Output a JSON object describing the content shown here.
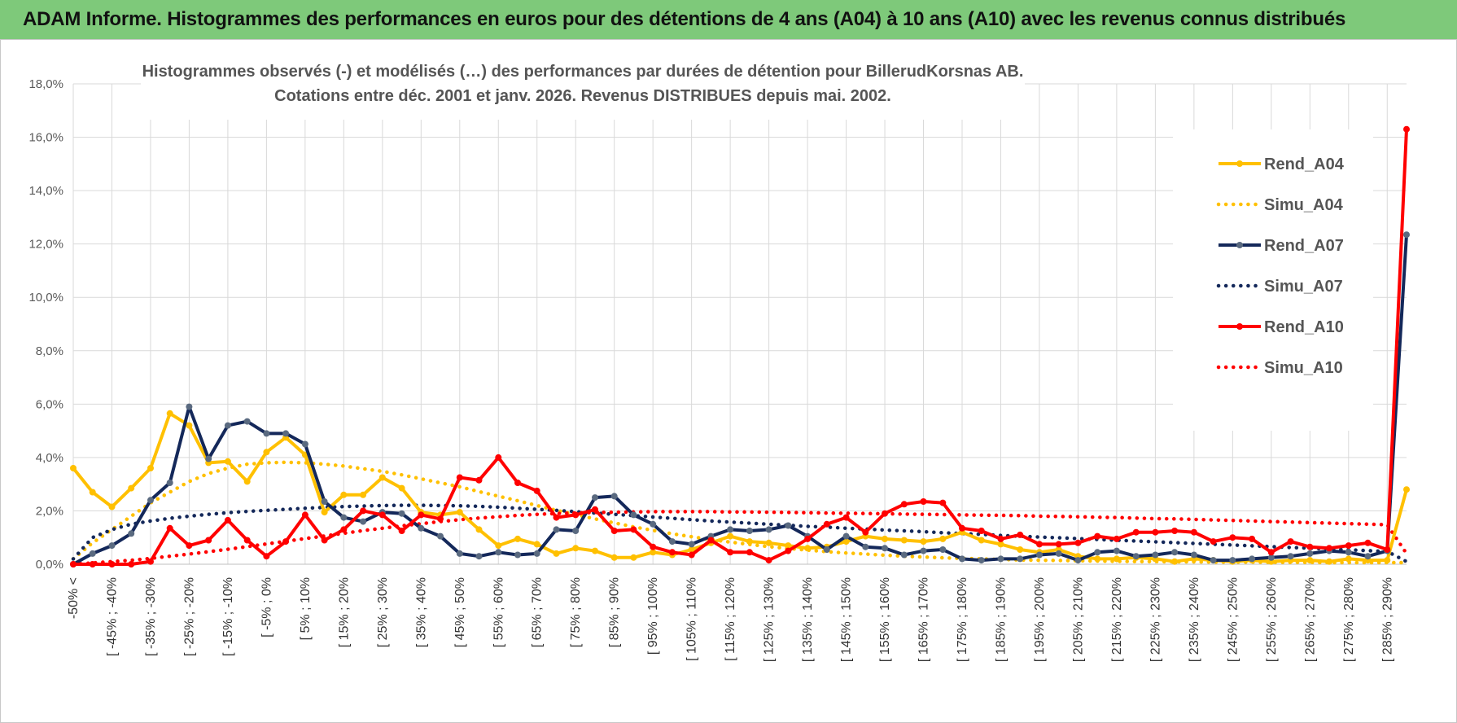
{
  "banner": {
    "title": "ADAM Informe. Histogrammes des performances en euros pour des détentions de 4 ans (A04) à 10 ans (A10) avec les revenus connus distribués"
  },
  "colors": {
    "banner_bg": "#7ec97a",
    "A04": "#ffc000",
    "A07": "#14285a",
    "A10": "#ff0000",
    "grid": "#d9d9d9"
  },
  "chart_data": {
    "type": "line",
    "title_line1": "Histogrammes observés (-) et modélisés (…) des performances par durées de détention pour BillerudKorsnas AB.",
    "title_line2": "Cotations entre déc. 2001 et janv. 2026.  Revenus DISTRIBUES depuis mai. 2002.",
    "xlabel": "",
    "ylabel": "",
    "ylim": [
      0,
      18
    ],
    "yticks": [
      "0,0%",
      "2,0%",
      "4,0%",
      "6,0%",
      "8,0%",
      "10,0%",
      "12,0%",
      "14,0%",
      "16,0%",
      "18,0%"
    ],
    "xtick_labels": [
      "-50% <",
      "[ -45% ; -40%",
      "[ -35% ; -30%",
      "[ -25% ; -20%",
      "[ -15% ; -10%",
      "[ -5% ; 0%",
      "[ 5% ; 10%",
      "[ 15% ; 20%",
      "[ 25% ; 30%",
      "[ 35% ; 40%",
      "[ 45% ; 50%",
      "[ 55% ; 60%",
      "[ 65% ; 70%",
      "[ 75% ; 80%",
      "[ 85% ; 90%",
      "[ 95% ; 100%",
      "[ 105% ; 110%",
      "[ 115% ; 120%",
      "[ 125% ; 130%",
      "[ 135% ; 140%",
      "[ 145% ; 150%",
      "[ 155% ; 160%",
      "[ 165% ; 170%",
      "[ 175% ; 180%",
      "[ 185% ; 190%",
      "[ 195% ; 200%",
      "[ 205% ; 210%",
      "[ 215% ; 220%",
      "[ 225% ; 230%",
      "[ 235% ; 240%",
      "[ 245% ; 250%",
      "[ 255% ; 260%",
      "[ 265% ; 270%",
      "[ 275% ; 280%",
      "[ 285% ; 290%"
    ],
    "n_points": 70,
    "series": [
      {
        "name": "Rend_A04",
        "style": "solid",
        "color": "#ffc000",
        "values": [
          3.6,
          2.7,
          2.15,
          2.85,
          3.6,
          5.65,
          5.2,
          3.8,
          3.85,
          3.1,
          4.2,
          4.75,
          4.1,
          1.95,
          2.6,
          2.6,
          3.25,
          2.85,
          1.95,
          1.85,
          1.95,
          1.3,
          0.7,
          0.95,
          0.75,
          0.4,
          0.6,
          0.5,
          0.25,
          0.25,
          0.45,
          0.35,
          0.55,
          0.8,
          1.05,
          0.85,
          0.8,
          0.7,
          0.6,
          0.65,
          0.85,
          1.05,
          0.95,
          0.9,
          0.85,
          0.95,
          1.2,
          0.9,
          0.75,
          0.55,
          0.45,
          0.55,
          0.3,
          0.2,
          0.2,
          0.25,
          0.2,
          0.1,
          0.2,
          0.15,
          0.1,
          0.15,
          0.1,
          0.15,
          0.15,
          0.1,
          0.2,
          0.15,
          0.15,
          2.8
        ]
      },
      {
        "name": "Simu_A04",
        "style": "dotted",
        "color": "#ffc000",
        "values": [
          0.2,
          0.8,
          1.3,
          1.8,
          2.3,
          2.7,
          3.1,
          3.4,
          3.6,
          3.75,
          3.8,
          3.82,
          3.8,
          3.75,
          3.68,
          3.58,
          3.48,
          3.35,
          3.2,
          3.05,
          2.9,
          2.72,
          2.55,
          2.38,
          2.2,
          2.02,
          1.86,
          1.7,
          1.55,
          1.4,
          1.27,
          1.14,
          1.03,
          0.92,
          0.83,
          0.74,
          0.66,
          0.59,
          0.53,
          0.47,
          0.42,
          0.38,
          0.34,
          0.3,
          0.27,
          0.24,
          0.22,
          0.2,
          0.18,
          0.16,
          0.15,
          0.14,
          0.13,
          0.12,
          0.11,
          0.1,
          0.1,
          0.09,
          0.09,
          0.08,
          0.08,
          0.08,
          0.07,
          0.07,
          0.07,
          0.06,
          0.06,
          0.06,
          0.06,
          0.06
        ]
      },
      {
        "name": "Rend_A07",
        "style": "solid",
        "color": "#14285a",
        "values": [
          0.0,
          0.4,
          0.7,
          1.15,
          2.4,
          3.05,
          5.9,
          3.95,
          5.2,
          5.35,
          4.9,
          4.9,
          4.5,
          2.35,
          1.75,
          1.6,
          1.95,
          1.9,
          1.35,
          1.05,
          0.4,
          0.3,
          0.45,
          0.35,
          0.4,
          1.3,
          1.25,
          2.5,
          2.55,
          1.85,
          1.5,
          0.85,
          0.75,
          1.05,
          1.3,
          1.25,
          1.3,
          1.45,
          1.05,
          0.55,
          1.05,
          0.65,
          0.6,
          0.35,
          0.5,
          0.55,
          0.2,
          0.15,
          0.2,
          0.2,
          0.35,
          0.4,
          0.15,
          0.45,
          0.5,
          0.3,
          0.35,
          0.45,
          0.35,
          0.15,
          0.15,
          0.2,
          0.25,
          0.3,
          0.4,
          0.5,
          0.45,
          0.3,
          0.5,
          12.35
        ]
      },
      {
        "name": "Simu_A07",
        "style": "dotted",
        "color": "#14285a",
        "values": [
          0.2,
          1.0,
          1.3,
          1.5,
          1.62,
          1.72,
          1.8,
          1.87,
          1.93,
          1.98,
          2.02,
          2.06,
          2.1,
          2.13,
          2.16,
          2.18,
          2.2,
          2.21,
          2.21,
          2.2,
          2.19,
          2.17,
          2.14,
          2.1,
          2.06,
          2.02,
          1.97,
          1.92,
          1.87,
          1.82,
          1.77,
          1.72,
          1.67,
          1.62,
          1.58,
          1.54,
          1.5,
          1.46,
          1.42,
          1.39,
          1.35,
          1.32,
          1.28,
          1.25,
          1.22,
          1.18,
          1.15,
          1.12,
          1.08,
          1.05,
          1.02,
          0.99,
          0.96,
          0.93,
          0.9,
          0.87,
          0.84,
          0.81,
          0.78,
          0.75,
          0.72,
          0.69,
          0.66,
          0.63,
          0.6,
          0.57,
          0.54,
          0.51,
          0.48,
          0.1
        ]
      },
      {
        "name": "Rend_A10",
        "style": "solid",
        "color": "#ff0000",
        "values": [
          0.0,
          0.0,
          0.0,
          0.0,
          0.1,
          1.35,
          0.7,
          0.9,
          1.65,
          0.9,
          0.3,
          0.85,
          1.85,
          0.9,
          1.3,
          2.0,
          1.85,
          1.25,
          1.85,
          1.7,
          3.25,
          3.15,
          4.0,
          3.05,
          2.75,
          1.75,
          1.85,
          2.05,
          1.25,
          1.3,
          0.65,
          0.45,
          0.35,
          0.9,
          0.45,
          0.45,
          0.15,
          0.5,
          0.95,
          1.5,
          1.75,
          1.2,
          1.9,
          2.25,
          2.35,
          2.3,
          1.35,
          1.25,
          0.95,
          1.1,
          0.75,
          0.75,
          0.8,
          1.05,
          0.95,
          1.2,
          1.2,
          1.25,
          1.2,
          0.85,
          1.0,
          0.95,
          0.45,
          0.85,
          0.65,
          0.6,
          0.7,
          0.8,
          0.55,
          16.3
        ]
      },
      {
        "name": "Simu_A10",
        "style": "dotted",
        "color": "#ff0000",
        "values": [
          0.0,
          0.05,
          0.1,
          0.15,
          0.22,
          0.3,
          0.38,
          0.47,
          0.56,
          0.66,
          0.76,
          0.86,
          0.96,
          1.06,
          1.16,
          1.26,
          1.35,
          1.44,
          1.52,
          1.6,
          1.67,
          1.73,
          1.78,
          1.83,
          1.87,
          1.9,
          1.92,
          1.94,
          1.95,
          1.96,
          1.97,
          1.97,
          1.97,
          1.97,
          1.96,
          1.96,
          1.95,
          1.94,
          1.93,
          1.92,
          1.91,
          1.9,
          1.89,
          1.88,
          1.87,
          1.86,
          1.85,
          1.84,
          1.83,
          1.82,
          1.8,
          1.79,
          1.78,
          1.76,
          1.75,
          1.73,
          1.71,
          1.7,
          1.68,
          1.66,
          1.64,
          1.62,
          1.6,
          1.58,
          1.56,
          1.54,
          1.52,
          1.5,
          1.48,
          0.4
        ]
      }
    ],
    "legend": [
      "Rend_A04",
      "Simu_A04",
      "Rend_A07",
      "Simu_A07",
      "Rend_A10",
      "Simu_A10"
    ],
    "legend_position": "right",
    "grid": true
  }
}
